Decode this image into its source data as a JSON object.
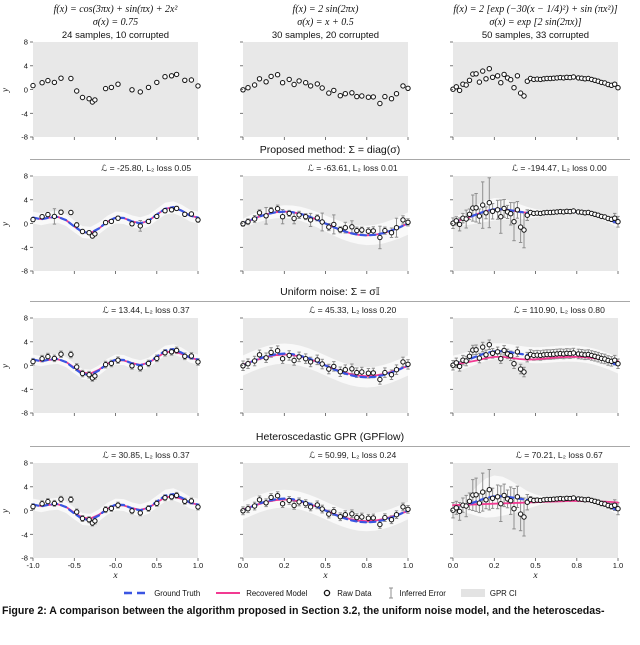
{
  "figure": {
    "ylabel": "y",
    "xlabel": "x",
    "yticks": [
      "8",
      "4",
      "0",
      "-4",
      "-8"
    ],
    "columns": [
      {
        "f": "f(x) = cos(3πx) + sin(πx) + 2x²",
        "sigma": "σ(x) = 0.75",
        "samples": "24 samples, 10 corrupted"
      },
      {
        "f": "f(x) = 2 sin(2πx)",
        "sigma": "σ(x) = x + 0.5",
        "samples": "30 samples, 20 corrupted"
      },
      {
        "f": "f(x) = 2 [exp (−30(x − 1/4)²) + sin (πx²)]",
        "sigma": "σ(x) = exp [2 sin(2πx)]",
        "samples": "50 samples, 33 corrupted"
      }
    ],
    "legend": [
      "Ground Truth",
      "Recovered Model",
      "Raw Data",
      "Inferred Error",
      "GPR CI"
    ],
    "caption": "Figure 2: A comparison between the algorithm proposed in Section 3.2, the uniform noise model, and the heteroscedas-"
  },
  "chart_data": {
    "type": "scatter",
    "grid": "4 rows x 3 columns",
    "ylim": [
      -8,
      8
    ],
    "colors": {
      "panel_bg": "#e8e8e8",
      "ci_band": "rgba(255,255,255,0.72)",
      "error_bar": "#8f8f8f",
      "truth_blue": "#3a55e2",
      "model_pink": "#f23a92",
      "point_stroke": "#111111",
      "point_fill": "#ffffff"
    },
    "columns": [
      {
        "xlim": [
          -1,
          1
        ],
        "xtick_vals": [
          -1,
          -0.5,
          0,
          0.5,
          1
        ],
        "xticks": [
          "-1.0",
          "-0.5",
          "-0.0",
          "0.5",
          "1.0"
        ],
        "truth": [
          1.0,
          0.72,
          1.0,
          1.12,
          0.58,
          -0.5,
          -1.44,
          -1.58,
          -0.82,
          0.3,
          1.0,
          0.92,
          0.36,
          0.04,
          0.46,
          1.5,
          2.48,
          2.74,
          2.18,
          1.34,
          1.0
        ],
        "px": [
          -1.0,
          -0.89,
          -0.82,
          -0.74,
          -0.66,
          -0.54,
          -0.47,
          -0.4,
          -0.32,
          -0.28,
          -0.25,
          -0.12,
          -0.05,
          0.03,
          0.2,
          0.3,
          0.4,
          0.5,
          0.6,
          0.68,
          0.74,
          0.84,
          0.92,
          1.0
        ],
        "py": [
          0.65,
          1.15,
          1.5,
          1.2,
          1.9,
          1.85,
          -0.25,
          -1.35,
          -1.55,
          -2.1,
          -1.75,
          0.15,
          0.35,
          0.9,
          -0.05,
          -0.4,
          0.35,
          1.2,
          2.15,
          2.3,
          2.55,
          1.55,
          1.6,
          0.6
        ]
      },
      {
        "xlim": [
          0,
          1
        ],
        "xtick_vals": [
          0,
          0.25,
          0.5,
          0.75,
          1
        ],
        "xticks": [
          "0.0",
          "0.2",
          "0.5",
          "0.8",
          "1.0"
        ],
        "truth": [
          0,
          0.62,
          1.18,
          1.62,
          1.9,
          2.0,
          1.9,
          1.62,
          1.18,
          0.62,
          0,
          -0.62,
          -1.18,
          -1.62,
          -1.9,
          -2.0,
          -1.9,
          -1.62,
          -1.18,
          -0.62,
          0
        ],
        "px": [
          0.0,
          0.03,
          0.07,
          0.1,
          0.14,
          0.17,
          0.21,
          0.24,
          0.28,
          0.31,
          0.34,
          0.38,
          0.41,
          0.45,
          0.48,
          0.52,
          0.55,
          0.59,
          0.62,
          0.66,
          0.69,
          0.72,
          0.76,
          0.79,
          0.83,
          0.86,
          0.9,
          0.93,
          0.97,
          1.0
        ],
        "py": [
          -0.05,
          0.3,
          0.75,
          1.8,
          1.3,
          2.2,
          2.5,
          1.15,
          1.7,
          0.85,
          1.45,
          1.15,
          0.6,
          0.95,
          0.25,
          -0.6,
          -0.15,
          -1.05,
          -0.7,
          -0.55,
          -1.2,
          -1.1,
          -1.3,
          -1.25,
          -2.35,
          -1.2,
          -1.55,
          -0.7,
          0.6,
          0.2
        ]
      },
      {
        "xlim": [
          0,
          1
        ],
        "xtick_vals": [
          0,
          0.25,
          0.5,
          0.75,
          1
        ],
        "xticks": [
          "0.0",
          "0.2",
          "0.5",
          "0.8",
          "1.0"
        ],
        "truth": [
          0.31,
          0.62,
          1.08,
          1.62,
          2.11,
          2.39,
          2.41,
          2.23,
          1.98,
          1.79,
          1.72,
          1.76,
          1.86,
          1.96,
          2.01,
          1.96,
          1.81,
          1.53,
          1.12,
          0.6,
          0.0
        ],
        "px": [
          0.0,
          0.02,
          0.04,
          0.06,
          0.08,
          0.1,
          0.12,
          0.14,
          0.16,
          0.18,
          0.2,
          0.22,
          0.24,
          0.27,
          0.29,
          0.31,
          0.33,
          0.35,
          0.37,
          0.39,
          0.41,
          0.43,
          0.45,
          0.47,
          0.49,
          0.51,
          0.53,
          0.55,
          0.57,
          0.59,
          0.61,
          0.63,
          0.65,
          0.67,
          0.69,
          0.71,
          0.73,
          0.76,
          0.78,
          0.8,
          0.82,
          0.84,
          0.86,
          0.88,
          0.9,
          0.92,
          0.94,
          0.96,
          0.98,
          1.0
        ],
        "py": [
          0.05,
          0.45,
          -0.15,
          0.9,
          0.75,
          1.55,
          2.6,
          2.65,
          1.25,
          3.1,
          1.8,
          3.5,
          2.05,
          2.3,
          1.15,
          2.55,
          1.95,
          1.65,
          0.3,
          2.3,
          -0.6,
          -1.1,
          1.4,
          1.85,
          1.7,
          1.75,
          1.7,
          1.8,
          1.85,
          1.85,
          1.9,
          1.95,
          2.0,
          1.95,
          2.05,
          2.0,
          2.1,
          1.95,
          1.9,
          1.8,
          1.85,
          1.7,
          1.55,
          1.4,
          1.2,
          1.1,
          0.85,
          0.7,
          0.9,
          0.3
        ]
      }
    ],
    "rows": [
      {
        "kind": "raw"
      },
      {
        "kind": "fit",
        "section": "Proposed method: Σ = diag(σ)",
        "panels": [
          {
            "title": "ℒ = -25.80, L₂ loss 0.05",
            "ci": 1.0,
            "errors": [
              0.35,
              0.3,
              0.3,
              1.3,
              0.35,
              0.3,
              0.4,
              0.35,
              0.3,
              0.35,
              0.3,
              0.3,
              0.3,
              0.35,
              0.3,
              0.9,
              0.35,
              0.3,
              0.35,
              0.3,
              0.35,
              0.3,
              0.3,
              0.4
            ],
            "model": "truth"
          },
          {
            "title": "ℒ = -63.61, L₂ loss 0.01",
            "ci": [
              0.8,
              0.86,
              0.91,
              0.97,
              1.02,
              1.08,
              1.13,
              1.19,
              1.24,
              1.3,
              1.35,
              1.41,
              1.46,
              1.52,
              1.57,
              1.63,
              1.68,
              1.74,
              1.79,
              1.85,
              1.9
            ],
            "errors": [
              0.4,
              0.5,
              0.6,
              0.5,
              1.4,
              0.5,
              0.6,
              1.2,
              0.5,
              0.9,
              0.6,
              0.5,
              1.1,
              0.5,
              1.5,
              0.6,
              1.6,
              0.5,
              0.9,
              1.0,
              0.6,
              0.5,
              0.6,
              0.7,
              1.9,
              0.6,
              0.8,
              1.6,
              0.7,
              0.6
            ],
            "model": "truth"
          },
          {
            "title": "ℒ = -194.47, L₂ loss 0.00",
            "ci": [
              0.7,
              1.0,
              1.3,
              1.6,
              1.8,
              1.9,
              1.8,
              1.6,
              1.3,
              1.0,
              0.7,
              0.5,
              0.35,
              0.3,
              0.25,
              0.25,
              0.25,
              0.3,
              0.4,
              0.55,
              0.7
            ],
            "errors": [
              0.9,
              0.7,
              1.1,
              0.8,
              1.5,
              0.9,
              2.2,
              2.4,
              1.2,
              3.9,
              1.0,
              4.2,
              1.3,
              1.6,
              2.8,
              1.5,
              1.1,
              1.9,
              3.2,
              1.4,
              2.6,
              3.0,
              0.9,
              0.3,
              0.25,
              0.2,
              0.2,
              0.15,
              0.15,
              0.15,
              0.15,
              0.15,
              0.15,
              0.15,
              0.15,
              0.15,
              0.15,
              0.15,
              0.15,
              0.15,
              0.2,
              0.2,
              0.2,
              0.25,
              0.25,
              0.3,
              0.3,
              0.35,
              0.8,
              0.9
            ],
            "model": "truth"
          }
        ]
      },
      {
        "kind": "fit",
        "section": "Uniform noise: Σ = σ𝕀",
        "panels": [
          {
            "title": "ℒ = 13.44, L₂ loss 0.37",
            "ci": 0.85,
            "errors": 0.55,
            "model": [
              0.95,
              0.75,
              0.95,
              1.05,
              0.6,
              -0.35,
              -1.2,
              -1.35,
              -0.7,
              0.3,
              0.9,
              0.85,
              0.4,
              0.1,
              0.45,
              1.35,
              2.2,
              2.4,
              1.95,
              1.3,
              1.0
            ]
          },
          {
            "title": "ℒ = 45.33, L₂ loss 0.20",
            "ci": 1.7,
            "errors": 0.8,
            "model": [
              0.15,
              0.65,
              1.1,
              1.5,
              1.75,
              1.85,
              1.75,
              1.5,
              1.1,
              0.6,
              0.05,
              -0.55,
              -1.05,
              -1.45,
              -1.7,
              -1.8,
              -1.7,
              -1.45,
              -1.05,
              -0.55,
              -0.1
            ]
          },
          {
            "title": "ℒ = 110.90, L₂ loss 0.80",
            "ci": 1.35,
            "errors": 0.8,
            "model": [
              0.2,
              0.35,
              0.6,
              0.9,
              1.25,
              1.45,
              1.45,
              1.3,
              1.1,
              1.0,
              1.05,
              1.15,
              1.3,
              1.4,
              1.45,
              1.45,
              1.4,
              1.25,
              1.05,
              0.85,
              0.7
            ]
          }
        ]
      },
      {
        "kind": "fit",
        "section": "Heteroscedastic GPR (GPFlow)",
        "panels": [
          {
            "title": "ℒ = 30.85, L₂ loss 0.37",
            "ci": 1.0,
            "errors": 0.5,
            "model": [
              0.95,
              0.75,
              0.95,
              1.05,
              0.6,
              -0.35,
              -1.2,
              -1.35,
              -0.7,
              0.3,
              0.9,
              0.85,
              0.4,
              0.1,
              0.45,
              1.35,
              2.2,
              2.4,
              1.95,
              1.3,
              1.0
            ]
          },
          {
            "title": "ℒ = 50.99, L₂ loss 0.24",
            "ci": 1.5,
            "errors": 0.65,
            "model": [
              0.15,
              0.65,
              1.1,
              1.5,
              1.75,
              1.85,
              1.75,
              1.5,
              1.1,
              0.6,
              0.05,
              -0.55,
              -1.05,
              -1.45,
              -1.7,
              -1.8,
              -1.7,
              -1.45,
              -1.05,
              -0.55,
              -0.1
            ]
          },
          {
            "title": "ℒ = 70.21, L₂ loss 0.67",
            "ci": [
              0.6,
              0.9,
              1.6,
              2.6,
              3.3,
              3.5,
              3.3,
              2.8,
              2.2,
              1.5,
              1.0,
              0.6,
              0.45,
              0.4,
              0.35,
              0.35,
              0.35,
              0.4,
              0.45,
              0.55,
              0.7
            ],
            "errors": [
              1.3,
              1.1,
              1.5,
              1.2,
              1.8,
              1.4,
              2.6,
              2.8,
              1.6,
              3.2,
              1.5,
              3.4,
              1.7,
              2.0,
              3.0,
              1.9,
              1.5,
              2.3,
              3.4,
              1.8,
              2.8,
              3.2,
              1.3,
              0.5,
              0.4,
              0.35,
              0.3,
              0.3,
              0.3,
              0.3,
              0.3,
              0.3,
              0.3,
              0.3,
              0.3,
              0.3,
              0.3,
              0.3,
              0.3,
              0.3,
              0.35,
              0.35,
              0.35,
              0.4,
              0.4,
              0.45,
              0.45,
              0.5,
              0.9,
              1.0
            ],
            "model": [
              0.9,
              0.95,
              1.0,
              1.05,
              1.1,
              1.15,
              1.2,
              1.25,
              1.3,
              1.35,
              1.4,
              1.45,
              1.5,
              1.55,
              1.6,
              1.6,
              1.58,
              1.55,
              1.5,
              1.45,
              1.35
            ]
          }
        ]
      }
    ]
  }
}
